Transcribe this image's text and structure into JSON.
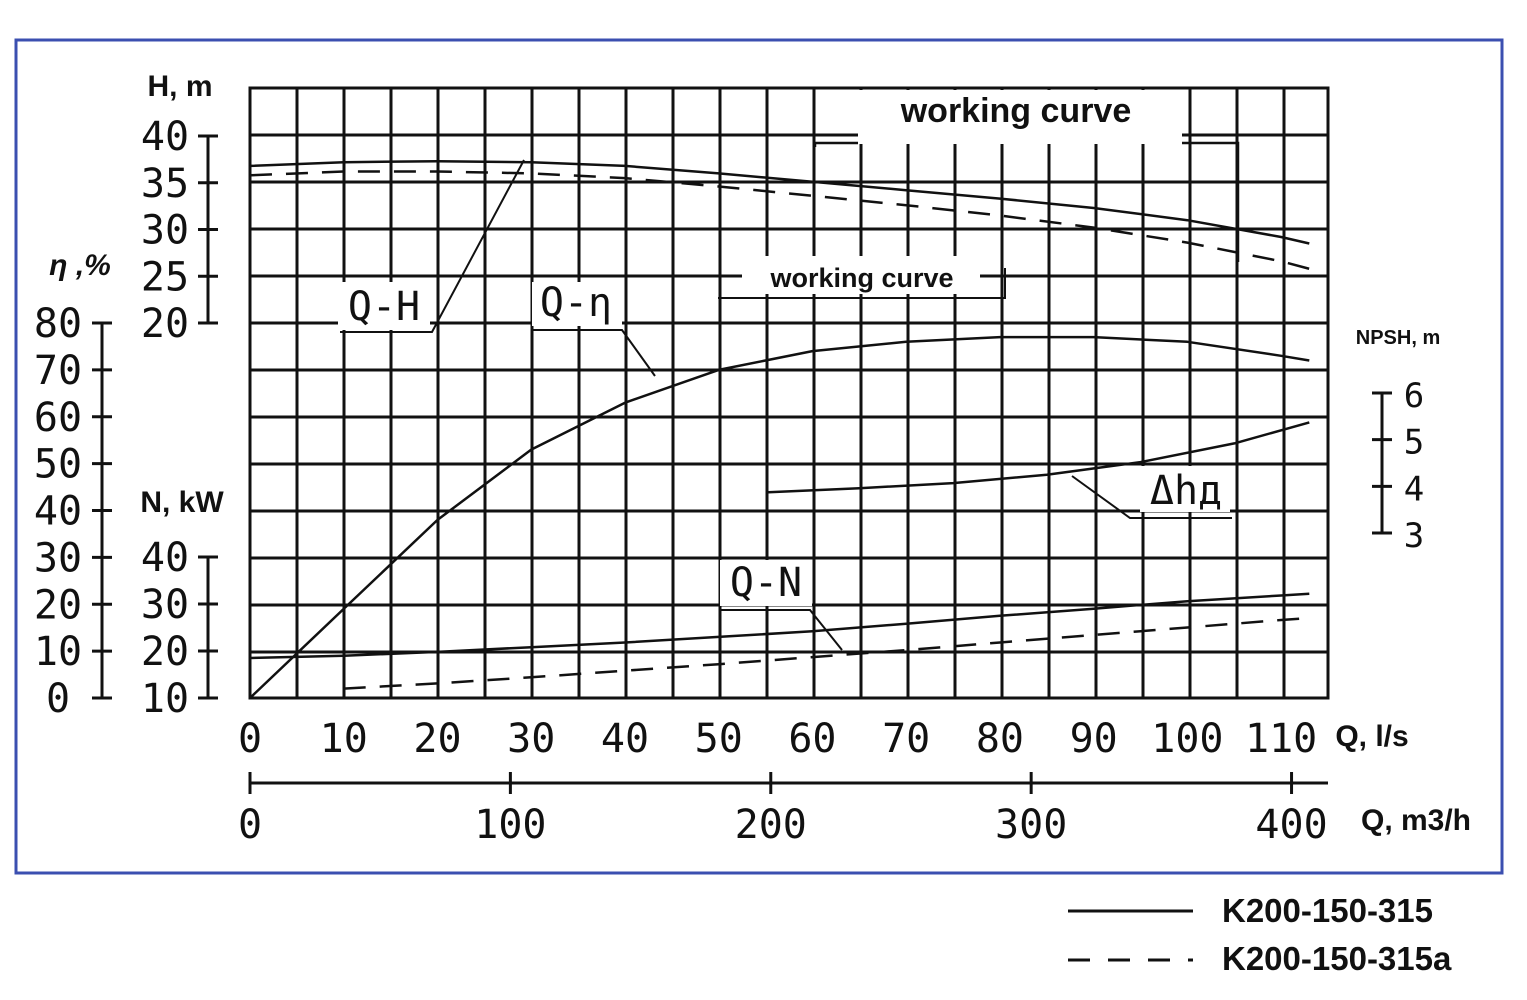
{
  "chart_data": {
    "type": "line",
    "title": "",
    "x_axis": {
      "label_ls": "Q, l/s",
      "label_m3h": "Q, m3/h",
      "range_ls": [
        0,
        115
      ],
      "ticks_ls": [
        "0",
        "10",
        "20",
        "30",
        "40",
        "50",
        "60",
        "70",
        "80",
        "90",
        "100",
        "110"
      ],
      "ticks_m3h": [
        "0",
        "100",
        "200",
        "300",
        "400"
      ]
    },
    "y_axes": {
      "head": {
        "label": "H, m",
        "range": [
          20,
          40
        ],
        "ticks": [
          "20",
          "25",
          "30",
          "35",
          "40"
        ]
      },
      "efficiency": {
        "label": "η ,%",
        "range": [
          0,
          80
        ],
        "ticks": [
          "0",
          "10",
          "20",
          "30",
          "40",
          "50",
          "60",
          "70",
          "80"
        ]
      },
      "power": {
        "label": "N, kW",
        "range": [
          10,
          40
        ],
        "ticks": [
          "10",
          "20",
          "30",
          "40"
        ]
      },
      "npsh": {
        "label": "NPSH, m",
        "range": [
          3,
          6
        ],
        "ticks": [
          "3",
          "4",
          "5",
          "6"
        ]
      }
    },
    "curve_labels": {
      "qh": "Q-H",
      "qeta": "Q-η",
      "qn": "Q-N",
      "npsh": "Δhд",
      "working_top": "working curve",
      "working_mid": "working curve"
    },
    "working_range_ls": [
      60,
      105
    ],
    "grid": true,
    "series": [
      {
        "name": "K200-150-315",
        "style": "solid",
        "curve": "Q-H",
        "x": [
          0,
          10,
          20,
          30,
          40,
          50,
          60,
          70,
          80,
          90,
          100,
          110,
          113
        ],
        "y": [
          36.8,
          37.2,
          37.3,
          37.2,
          36.8,
          36.0,
          35.1,
          34.2,
          33.3,
          32.3,
          31.0,
          29.2,
          28.5
        ]
      },
      {
        "name": "K200-150-315a",
        "style": "dashed",
        "curve": "Q-H",
        "x": [
          0,
          10,
          20,
          30,
          40,
          50,
          60,
          70,
          80,
          90,
          100,
          110,
          113
        ],
        "y": [
          35.8,
          36.2,
          36.2,
          36.0,
          35.5,
          34.6,
          33.6,
          32.6,
          31.5,
          30.2,
          28.6,
          26.6,
          25.8
        ]
      },
      {
        "name": "",
        "style": "solid",
        "curve": "Q-η",
        "x": [
          0,
          10,
          20,
          30,
          40,
          50,
          60,
          70,
          80,
          90,
          100,
          110,
          113
        ],
        "y": [
          0,
          19,
          38,
          53,
          63,
          70,
          74,
          76,
          77,
          77,
          76,
          73,
          72
        ]
      },
      {
        "name": "",
        "style": "solid",
        "curve": "Q-N",
        "x": [
          0,
          10,
          20,
          30,
          40,
          50,
          60,
          70,
          80,
          90,
          100,
          110,
          113
        ],
        "y": [
          18.5,
          19.0,
          19.8,
          20.8,
          21.8,
          23.0,
          24.2,
          25.8,
          27.5,
          29.0,
          30.6,
          31.8,
          32.2
        ]
      },
      {
        "name": "",
        "style": "dashed",
        "curve": "Q-N",
        "x": [
          10,
          20,
          30,
          40,
          50,
          60,
          70,
          80,
          90,
          100,
          110,
          113
        ],
        "y": [
          12.0,
          13.1,
          14.4,
          15.8,
          17.2,
          18.7,
          20.2,
          21.8,
          23.4,
          25.0,
          26.6,
          27.0
        ]
      },
      {
        "name": "",
        "style": "solid",
        "curve": "NPSH",
        "x": [
          55,
          65,
          75,
          85,
          95,
          105,
          113
        ],
        "y": [
          3.87,
          3.96,
          4.07,
          4.25,
          4.52,
          4.92,
          5.37
        ]
      }
    ]
  },
  "legend": {
    "items": [
      {
        "label": "K200-150-315",
        "style": "solid"
      },
      {
        "label": "K200-150-315a",
        "style": "dashed"
      }
    ]
  },
  "colors": {
    "frame": "#3b4fb0",
    "ink": "#111111",
    "background": "#ffffff"
  }
}
